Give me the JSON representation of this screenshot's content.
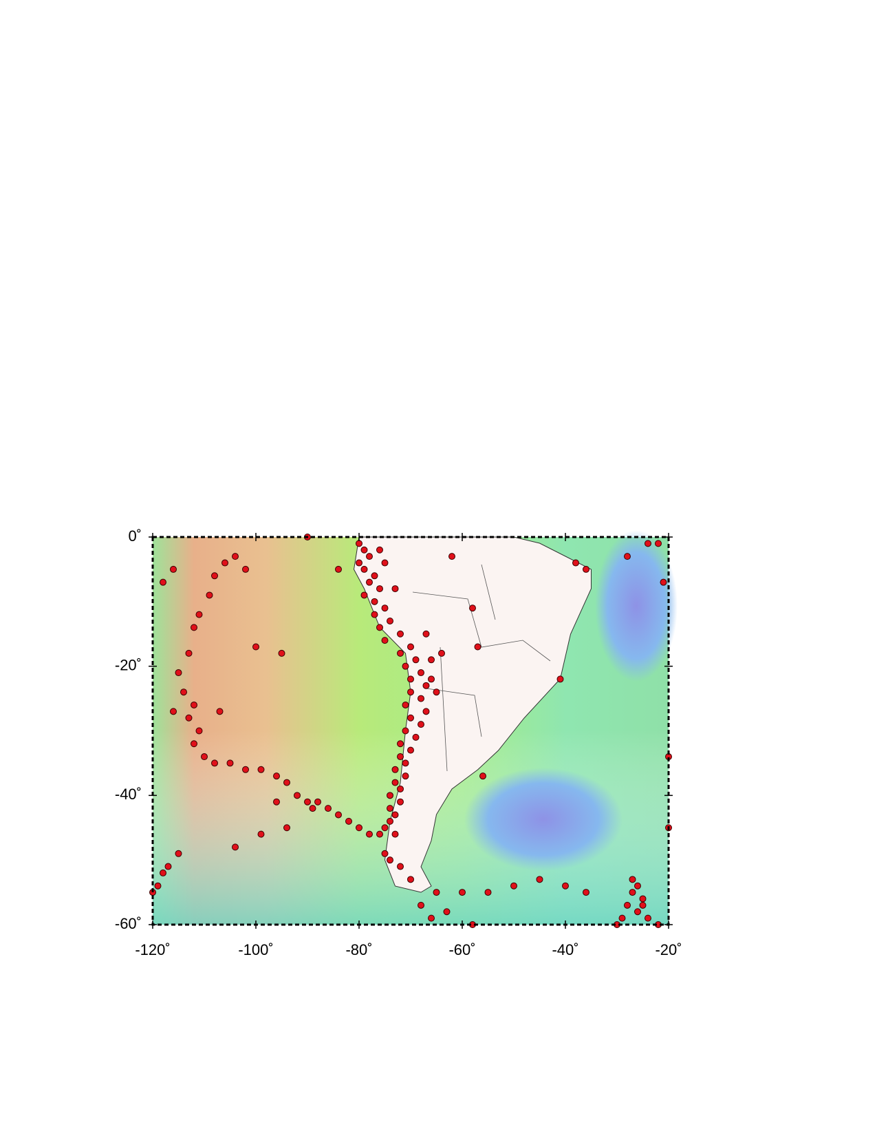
{
  "chart_data": {
    "type": "scatter",
    "xlim": [
      -120,
      -20
    ],
    "ylim": [
      -60,
      0
    ],
    "xticks": [
      {
        "value": -120,
        "label": "-120˚"
      },
      {
        "value": -100,
        "label": "-100˚"
      },
      {
        "value": -80,
        "label": "-80˚"
      },
      {
        "value": -60,
        "label": "-60˚"
      },
      {
        "value": -40,
        "label": "-40˚"
      },
      {
        "value": -20,
        "label": "-20˚"
      }
    ],
    "yticks": [
      {
        "value": 0,
        "label": "0˚"
      },
      {
        "value": -20,
        "label": "-20˚"
      },
      {
        "value": -40,
        "label": "-40˚"
      },
      {
        "value": -60,
        "label": "-60˚"
      }
    ],
    "series": [
      {
        "color": "#e0101a",
        "x": [
          -80,
          -79,
          -78,
          -80,
          -79,
          -77,
          -78,
          -76,
          -79,
          -77,
          -75,
          -77,
          -74,
          -76,
          -72,
          -75,
          -70,
          -72,
          -69,
          -71,
          -68,
          -70,
          -67,
          -70,
          -68,
          -71,
          -67,
          -70,
          -68,
          -71,
          -69,
          -72,
          -70,
          -72,
          -71,
          -73,
          -71,
          -73,
          -72,
          -74,
          -72,
          -74,
          -73,
          -74,
          -75,
          -73,
          -66,
          -65,
          -64,
          -66,
          -67,
          -73,
          -75,
          -76,
          -62,
          -58,
          -57,
          -106,
          -104,
          -102,
          -108,
          -109,
          -111,
          -112,
          -113,
          -115,
          -114,
          -112,
          -113,
          -111,
          -112,
          -110,
          -108,
          -105,
          -102,
          -99,
          -96,
          -94,
          -92,
          -90,
          -88,
          -86,
          -84,
          -82,
          -80,
          -78,
          -76,
          -116,
          -117,
          -118,
          -119,
          -120,
          -115,
          -107,
          -100,
          -118,
          -116,
          -99,
          -96,
          -89,
          -94,
          -104,
          -26,
          -27,
          -25,
          -28,
          -26,
          -24,
          -29,
          -25,
          -27,
          -30,
          -22,
          -36,
          -40,
          -45,
          -50,
          -55,
          -60,
          -65,
          -68,
          -66,
          -63,
          -58,
          -70,
          -72,
          -74,
          -75,
          -20,
          -20,
          -21,
          -22,
          -24,
          -28,
          -38,
          -36,
          -41,
          -56,
          -90,
          -84,
          -95
        ],
        "values": [
          -1,
          -2,
          -3,
          -4,
          -5,
          -6,
          -7,
          -8,
          -9,
          -10,
          -11,
          -12,
          -13,
          -14,
          -15,
          -16,
          -17,
          -18,
          -19,
          -20,
          -21,
          -22,
          -23,
          -24,
          -25,
          -26,
          -27,
          -28,
          -29,
          -30,
          -31,
          -32,
          -33,
          -34,
          -35,
          -36,
          -37,
          -38,
          -39,
          -40,
          -41,
          -42,
          -43,
          -44,
          -45,
          -46,
          -22,
          -24,
          -18,
          -19,
          -15,
          -8,
          -4,
          -2,
          -3,
          -11,
          -17,
          -4,
          -3,
          -5,
          -6,
          -9,
          -12,
          -14,
          -18,
          -21,
          -24,
          -26,
          -28,
          -30,
          -32,
          -34,
          -35,
          -35,
          -36,
          -36,
          -37,
          -38,
          -40,
          -41,
          -41,
          -42,
          -43,
          -44,
          -45,
          -46,
          -46,
          -27,
          -51,
          -52,
          -54,
          -55,
          -49,
          -27,
          -17,
          -7,
          -5,
          -46,
          -41,
          -42,
          -45,
          -48,
          -54,
          -55,
          -56,
          -57,
          -58,
          -59,
          -59,
          -57,
          -53,
          -60,
          -60,
          -55,
          -54,
          -53,
          -54,
          -55,
          -55,
          -55,
          -57,
          -59,
          -58,
          -60,
          -53,
          -51,
          -50,
          -49,
          -34,
          -45,
          -7,
          -1,
          -1,
          -3,
          -4,
          -5,
          -22,
          -37,
          0,
          -5,
          -18
        ]
      }
    ]
  }
}
